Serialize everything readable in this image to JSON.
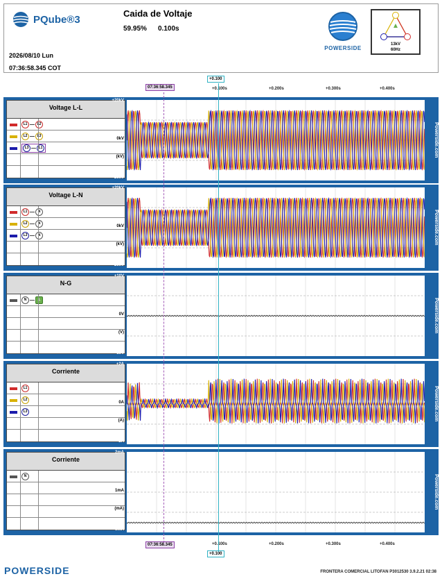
{
  "header": {
    "app_name": "PQube®3",
    "event_title": "Caida de Voltaje",
    "magnitude": "59.95%",
    "duration": "0.100s",
    "date": "2026/08/10 Lun",
    "time": "07:36:58.345 COT",
    "brand": "POWERSIDE",
    "delta": {
      "voltage": "13kV",
      "frequency": "60Hz",
      "nodes": [
        "L1",
        "L2",
        "L3"
      ]
    }
  },
  "cursors": {
    "event_time": "07:36:58.345",
    "offset": "+0.100"
  },
  "time_axis": [
    "+0.100s",
    "+0.200s",
    "+0.300s",
    "+0.400s"
  ],
  "side_label": "Powerside.com",
  "colors": {
    "red": "#d12b2b",
    "yellow": "#d8b100",
    "blue": "#1b1bab",
    "gray": "#555555",
    "frame": "#1d63a5",
    "purple_cursor": "#a35bb8",
    "cyan_cursor": "#2fb2c4"
  },
  "panels": [
    {
      "title": "Voltage L-L",
      "y_labels": [
        "+20kV",
        "0kV",
        "(kV)",
        "-20kV"
      ],
      "channels": [
        {
          "color": "red",
          "from": "L1",
          "to": "L2"
        },
        {
          "color": "yellow",
          "from": "L2",
          "to": "L3"
        },
        {
          "color": "blue",
          "from": "L3",
          "to": "L1"
        }
      ]
    },
    {
      "title": "Voltage L-N",
      "y_labels": [
        "+20kV",
        "0kV",
        "(kV)",
        "-20kV"
      ],
      "channels": [
        {
          "color": "red",
          "from": "L1",
          "to": "N"
        },
        {
          "color": "yellow",
          "from": "L2",
          "to": "N"
        },
        {
          "color": "blue",
          "from": "L3",
          "to": "N"
        }
      ]
    },
    {
      "title": "N-G",
      "y_labels": [
        "+10V",
        "0V",
        "(V)",
        "-10V"
      ],
      "channels": [
        {
          "color": "gray",
          "from": "N",
          "to": "⊥"
        }
      ]
    },
    {
      "title": "Corriente",
      "y_labels": [
        "+2A",
        "0A",
        "(A)",
        "-2A"
      ],
      "channels": [
        {
          "color": "red",
          "from": "L1"
        },
        {
          "color": "yellow",
          "from": "L2"
        },
        {
          "color": "blue",
          "from": "L3"
        }
      ]
    },
    {
      "title": "Corriente",
      "y_labels": [
        "2mA",
        "1mA",
        "(mA)",
        "0mA"
      ],
      "channels": [
        {
          "color": "gray",
          "from": "N"
        }
      ]
    }
  ],
  "footer": {
    "brand": "POWERSIDE",
    "info": "FRONTERA COMERCIAL LITOFAN   P3012530   3.9.2.21 02:38"
  }
}
